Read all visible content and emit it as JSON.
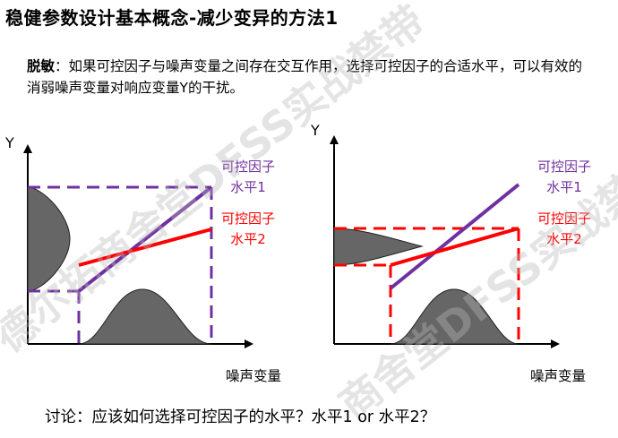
{
  "title": "稳健参数设计基本概念-减少变异的方法1",
  "intro": {
    "term": "脱敏",
    "colon": "：",
    "text": "如果可控因子与噪声变量之间存在交互作用，选择可控因子的合适水平，可以有效的消弱噪声变量对响应变量Y的干扰。"
  },
  "diagrams": [
    {
      "y_axis": "Y",
      "x_axis": "噪声变量",
      "level1": {
        "line1": "可控因子",
        "line2": "水平1",
        "color": "#7030a0"
      },
      "level2": {
        "line1": "可控因子",
        "line2": "水平2",
        "color": "#ff0000"
      },
      "highlighted": "level1"
    },
    {
      "y_axis": "Y",
      "x_axis": "噪声变量",
      "level1": {
        "line1": "可控因子",
        "line2": "水平1",
        "color": "#7030a0"
      },
      "level2": {
        "line1": "可控因子",
        "line2": "水平2",
        "color": "#ff0000"
      },
      "highlighted": "level2"
    }
  ],
  "question": "讨论：应该如何选择可控因子的水平？水平1 or 水平2？",
  "watermark": {
    "left": "德尔拓商舍堂DFSS实战禁带",
    "right": "商舍堂DFSS实战禁带"
  },
  "colors": {
    "distribution_fill": "#666666",
    "axis": "#000000"
  }
}
